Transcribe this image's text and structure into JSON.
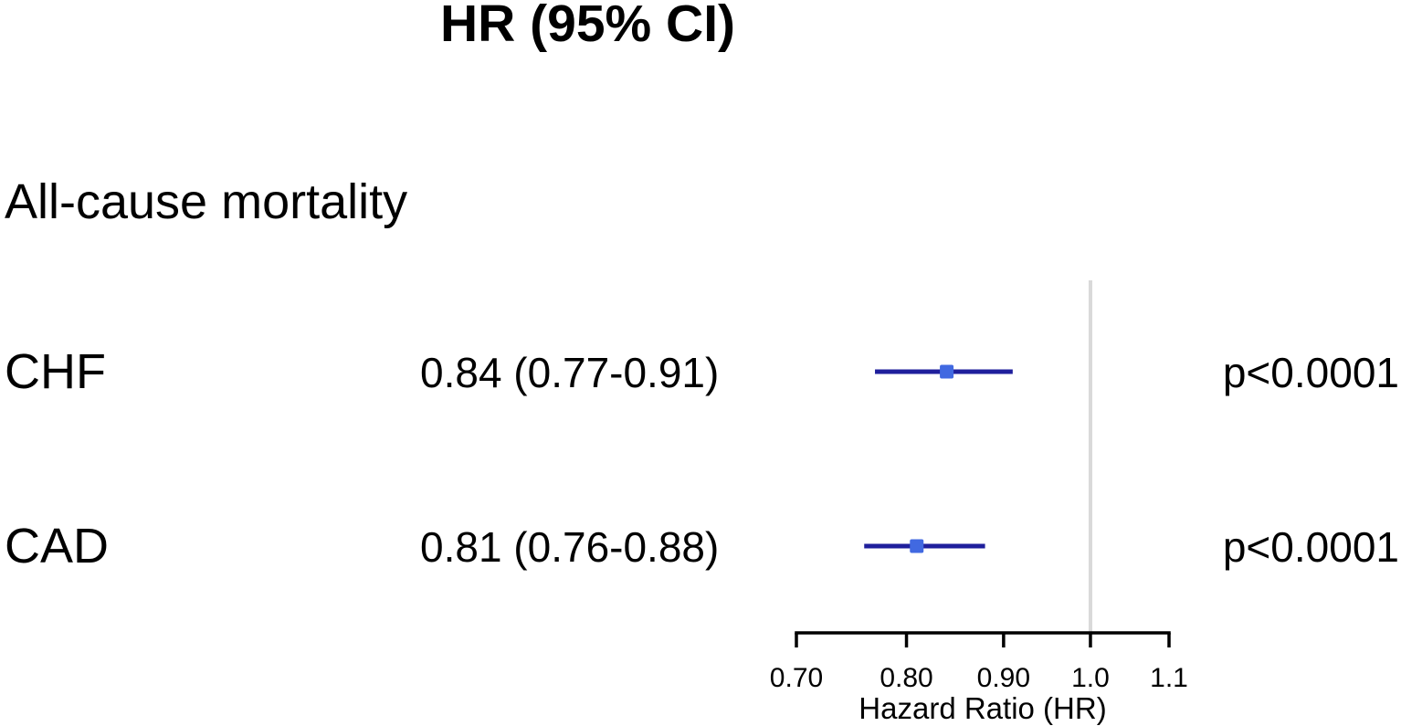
{
  "chart_data": {
    "type": "forest",
    "title": "HR (95% CI)",
    "group_label": "All-cause mortality",
    "xlabel": "Hazard Ratio (HR)",
    "scale": "log",
    "xlim": [
      0.7,
      1.1
    ],
    "ticks": [
      {
        "value": 0.7,
        "label": "0.70"
      },
      {
        "value": 0.8,
        "label": "0.80"
      },
      {
        "value": 0.9,
        "label": "0.90"
      },
      {
        "value": 1.0,
        "label": "1.0"
      },
      {
        "value": 1.1,
        "label": "1.1"
      }
    ],
    "reference_line": 1.0,
    "rows": [
      {
        "label": "CHF",
        "hr": 0.84,
        "ci_low": 0.77,
        "ci_high": 0.91,
        "estimate_text": "0.84 (0.77-0.91)",
        "p_text": "p<0.0001"
      },
      {
        "label": "CAD",
        "hr": 0.81,
        "ci_low": 0.76,
        "ci_high": 0.88,
        "estimate_text": "0.81 (0.76-0.88)",
        "p_text": "p<0.0001"
      }
    ],
    "colors": {
      "marker": "#4169E1",
      "ci_line": "#1F1F9C",
      "reference_line": "#D9D9D9",
      "axis": "#000000",
      "text": "#000000"
    },
    "legend": "none",
    "grid": "off"
  }
}
